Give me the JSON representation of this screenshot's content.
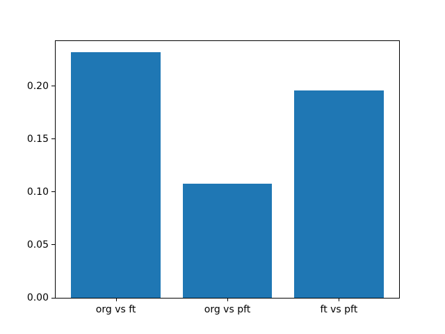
{
  "chart_data": {
    "type": "bar",
    "title": "",
    "xlabel": "",
    "ylabel": "",
    "categories": [
      "org vs ft",
      "org vs pft",
      "ft vs pft"
    ],
    "values": [
      0.232,
      0.108,
      0.196
    ],
    "bar_color": "#1f77b4",
    "axes_color": "#000000",
    "background_color": "#ffffff",
    "ylim": [
      0,
      0.2424
    ],
    "xlim": [
      -0.54,
      2.54
    ],
    "bar_width_fraction": 0.8,
    "yticks": {
      "values": [
        0,
        0.05,
        0.1,
        0.15,
        0.2
      ],
      "labels": [
        "0.00",
        "0.05",
        "0.10",
        "0.15",
        "0.20"
      ]
    },
    "grid": false,
    "legend": "none"
  }
}
